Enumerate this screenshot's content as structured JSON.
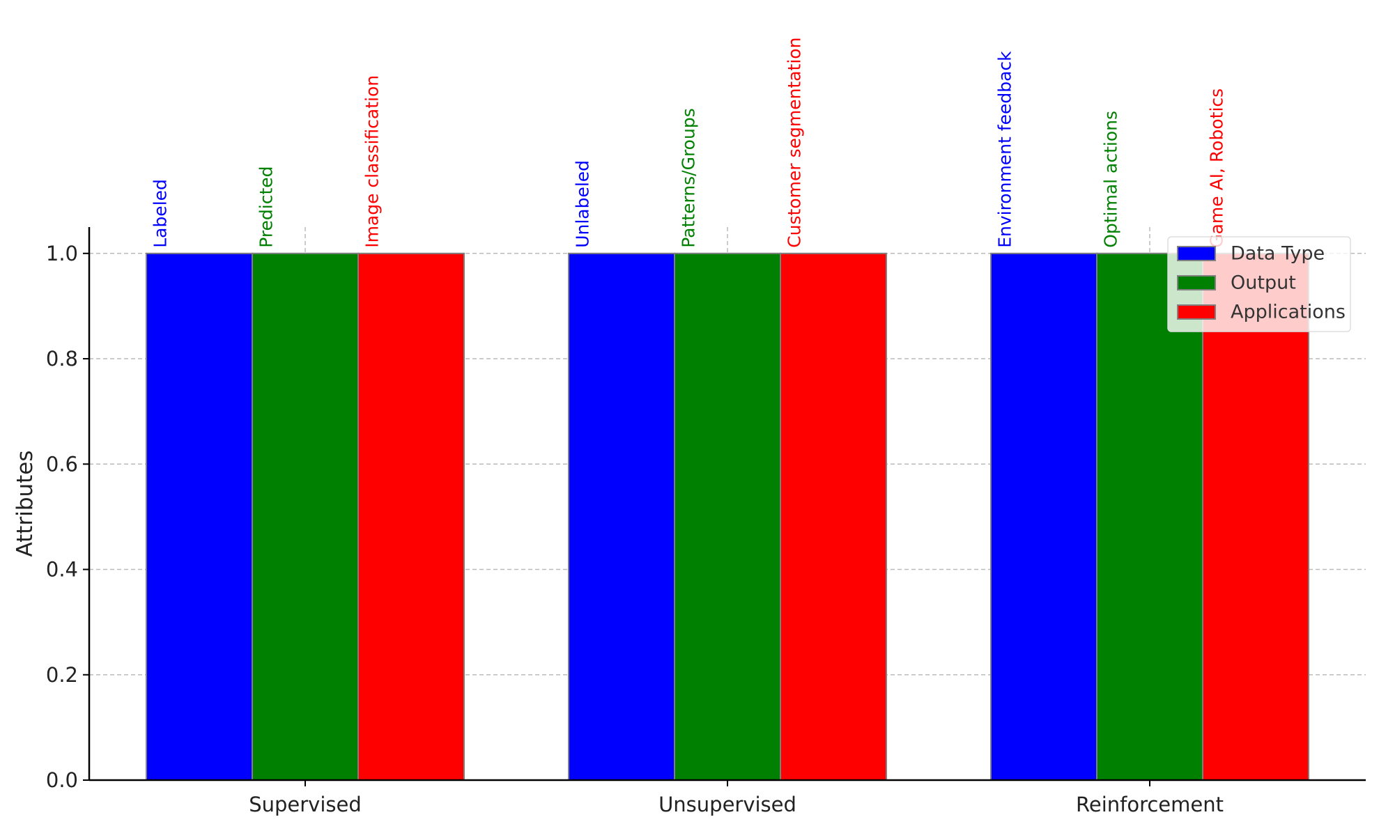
{
  "chart_data": {
    "type": "bar",
    "title": "",
    "xlabel": "",
    "ylabel": "Attributes",
    "ylim": [
      0,
      1.05
    ],
    "yticks": [
      0.0,
      0.2,
      0.4,
      0.6,
      0.8,
      1.0
    ],
    "ytick_labels": [
      "0.0",
      "0.2",
      "0.4",
      "0.6",
      "0.8",
      "1.0"
    ],
    "grid": true,
    "legend_position": "top-right",
    "categories": [
      "Supervised",
      "Unsupervised",
      "Reinforcement"
    ],
    "series": [
      {
        "name": "Data Type",
        "color": "#0000ff",
        "values": [
          1,
          1,
          1
        ],
        "labels": [
          "Labeled",
          "Unlabeled",
          "Environment feedback"
        ]
      },
      {
        "name": "Output",
        "color": "#008000",
        "values": [
          1,
          1,
          1
        ],
        "labels": [
          "Predicted",
          "Patterns/Groups",
          "Optimal actions"
        ]
      },
      {
        "name": "Applications",
        "color": "#ff0000",
        "values": [
          1,
          1,
          1
        ],
        "labels": [
          "Image classification",
          "Customer segmentation",
          "Game AI, Robotics"
        ]
      }
    ]
  }
}
